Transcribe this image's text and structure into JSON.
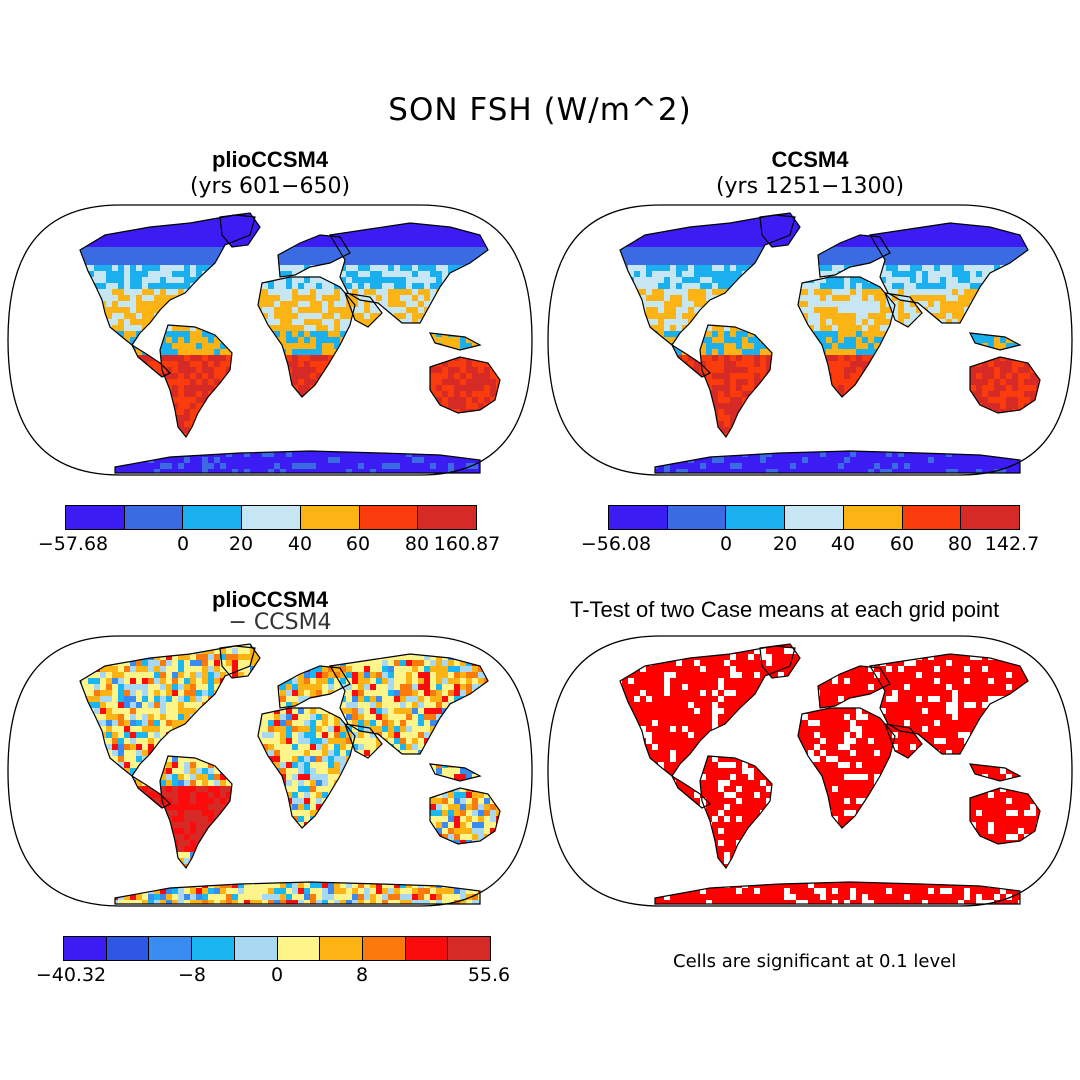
{
  "title": "SON FSH (W/m^2)",
  "panels": {
    "top_left": {
      "title": "plioCCSM4",
      "subtitle": "(yrs 601−650)",
      "colorbar": {
        "colors": [
          "#3b1cf2",
          "#3a6be2",
          "#1ab0f0",
          "#c6e6f4",
          "#fbb414",
          "#fa3c0c",
          "#d62a26"
        ],
        "labels": [
          "−57.68",
          "0",
          "20",
          "40",
          "60",
          "80",
          "160.87"
        ]
      }
    },
    "top_right": {
      "title": "CCSM4",
      "subtitle": "(yrs 1251−1300)",
      "colorbar": {
        "colors": [
          "#3b1cf2",
          "#3a6be2",
          "#1ab0f0",
          "#c6e6f4",
          "#fbb414",
          "#fa3c0c",
          "#d62a26"
        ],
        "labels": [
          "−56.08",
          "0",
          "20",
          "40",
          "60",
          "80",
          "142.7"
        ]
      }
    },
    "bottom_left": {
      "title": "plioCCSM4",
      "subtitle": "− CCSM4",
      "colorbar": {
        "colors": [
          "#3b1cf2",
          "#2f57e6",
          "#3a8bf0",
          "#1ab6f2",
          "#a8d8f2",
          "#fdf48a",
          "#fbb414",
          "#fa7a0c",
          "#fa0c0c",
          "#d62a26"
        ],
        "labels": [
          "−40.32",
          "−8",
          "0",
          "8",
          "55.6"
        ]
      }
    },
    "bottom_right": {
      "title": "T-Test of two Case means at each grid point",
      "note": "Cells are significant at 0.1 level"
    }
  },
  "colors": {
    "ocean": "#ffffff",
    "outline": "#000000",
    "significant": "#ff0000"
  }
}
